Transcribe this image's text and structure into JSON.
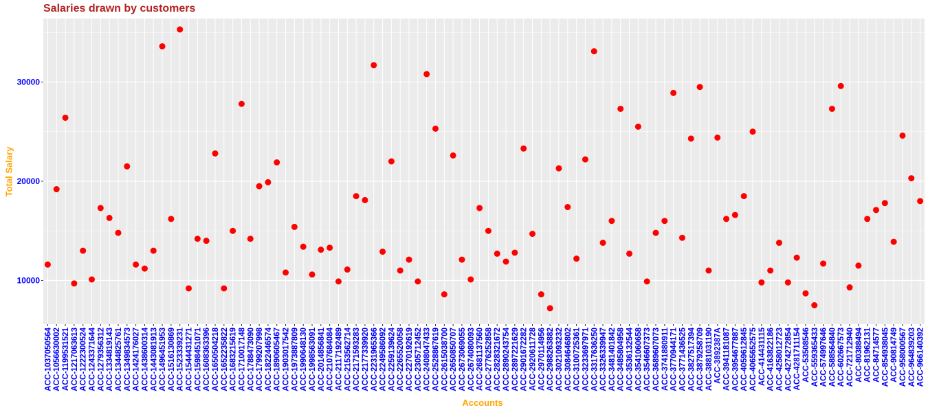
{
  "chart_data": {
    "type": "scatter",
    "title": "Salaries drawn by customers",
    "xlabel": "Accounts",
    "ylabel": "Total Salary",
    "ylim": [
      5600,
      36400
    ],
    "y_ticks": [
      10000,
      20000,
      30000
    ],
    "grid": true,
    "colors": {
      "point": "#FF0000",
      "title": "#B22222",
      "axis_title": "#FFA500",
      "tick": "#0000FF",
      "panel": "#EBEBEB",
      "grid": "#FFFFFF"
    },
    "categories": [
      "ACC-1037050564",
      "ACC-1056630002",
      "ACC-1199531521",
      "ACC-1217063613",
      "ACC-1222300524",
      "ACC-1243371644",
      "ACC-1279356312",
      "ACC-1334819143",
      "ACC-1344825761",
      "ACC-1349834573",
      "ACC-1424176027",
      "ACC-1438600314",
      "ACC-1443081913",
      "ACC-1496451953",
      "ACC-1516130869",
      "ACC-1523339231",
      "ACC-1544431271",
      "ACC-1598451071",
      "ACC-1608363396",
      "ACC-1650504218",
      "ACC-1652235822",
      "ACC-1683215619",
      "ACC-1710017148",
      "ACC-1788473090",
      "ACC-1799207998",
      "ACC-1822446574",
      "ACC-1890605467",
      "ACC-1903017542",
      "ACC-1973887809",
      "ACC-1990648130",
      "ACC-1998563091",
      "ACC-2014856841",
      "ACC-2107684084",
      "ACC-2117192489",
      "ACC-2153562714",
      "ACC-2171593283",
      "ACC-2177339920",
      "ACC-2231965366",
      "ACC-2249586092",
      "ACC-2259139624",
      "ACC-2265520058",
      "ACC-2270192619",
      "ACC-2305712452",
      "ACC-2408047433",
      "ACC-2528867619",
      "ACC-2615038700",
      "ACC-2650850707",
      "ACC-2673069055",
      "ACC-2674080093",
      "ACC-2681137560",
      "ACC-2776252858",
      "ACC-2828321672",
      "ACC-2890243754",
      "ACC-2897221629",
      "ACC-2901672282",
      "ACC-2920611728",
      "ACC-2970114956",
      "ACC-2988263882",
      "ACC-3021093232",
      "ACC-3084646802",
      "ACC-3100725361",
      "ACC-3233697971",
      "ACC-3317636250",
      "ACC-3326339947",
      "ACC-3481401842",
      "ACC-3485804958",
      "ACC-3536132544",
      "ACC-3541060658",
      "ACC-3546607373",
      "ACC-3689607073",
      "ACC-3741880911",
      "ACC-3770944171",
      "ACC-3771436525",
      "ACC-3827517394",
      "ACC-3879258709",
      "ACC-3881031190",
      "ACC-3892387A",
      "ACC-3941181087",
      "ACC-3954677887",
      "ACC-4059612845",
      "ACC-4065652575",
      "ACC-414431115",
      "ACC-4163822186",
      "ACC-4258012723",
      "ACC-4274272854",
      "ACC-4281711154",
      "ACC-53508546",
      "ACC-559365433",
      "ACC-574997646",
      "ACC-588564840",
      "ACC-602667573",
      "ACC-721712940",
      "ACC-80388494",
      "ACC-81962131",
      "ACC-84714577",
      "ACC-854938045",
      "ACC-90814749",
      "ACC-958000567",
      "ACC-964839203",
      "ACC-966140392"
    ],
    "values": [
      11600,
      19200,
      26400,
      9700,
      13000,
      10100,
      17300,
      16300,
      14800,
      21500,
      11600,
      11200,
      13000,
      33600,
      16200,
      35300,
      9200,
      14200,
      14000,
      22800,
      9200,
      15000,
      27800,
      14200,
      19500,
      19900,
      21900,
      10800,
      15400,
      13400,
      10600,
      13100,
      13300,
      9900,
      11100,
      18500,
      18100,
      31700,
      12900,
      22000,
      11000,
      12100,
      9900,
      30800,
      25300,
      8600,
      22600,
      12100,
      10100,
      17300,
      15000,
      12700,
      11900,
      12800,
      23300,
      14700,
      8600,
      7200,
      21300,
      17400,
      12200,
      22200,
      33100,
      13800,
      16000,
      27300,
      12700,
      25500,
      9900,
      14800,
      16000,
      28900,
      14300,
      24300,
      29500,
      11000,
      24400,
      16200,
      16600,
      18500,
      25000,
      9800,
      11000,
      13800,
      9800,
      12300,
      8700,
      7500,
      11700,
      27300,
      29600,
      9300,
      11500,
      16200,
      17100,
      17800,
      13900,
      24600,
      20300,
      18000
    ]
  }
}
